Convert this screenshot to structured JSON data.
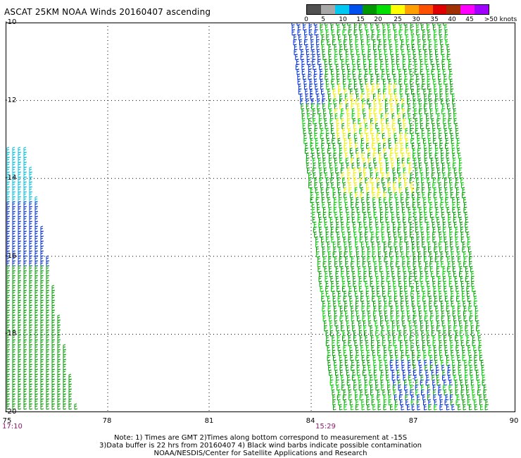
{
  "title": "ASCAT 25KM NOAA Winds 20160407 ascending",
  "legend": {
    "colors": [
      "#505050",
      "#a8a8a8",
      "#00c8f0",
      "#0050f0",
      "#009800",
      "#00e000",
      "#ffff00",
      "#ffa000",
      "#ff5000",
      "#e00000",
      "#a03000",
      "#ff00ff",
      "#a000ff"
    ],
    "labels": [
      "0",
      "5",
      "10",
      "15",
      "20",
      "25",
      "30",
      "35",
      "40",
      "45",
      ">50 knots"
    ]
  },
  "axes": {
    "x_ticks": [
      "75",
      "78",
      "81",
      "84",
      "87",
      "90"
    ],
    "y_ticks": [
      "-10",
      "-12",
      "-14",
      "-16",
      "-18",
      "-20"
    ]
  },
  "times": {
    "left": "17:10",
    "middle": "15:29"
  },
  "notes": [
    "Note: 1) Times are GMT 2)Times along bottom correspond to measurement at -15S",
    "3)Data buffer is 22 hrs from 20160407 4) Black wind barbs indicate possible contamination",
    "NOAA/NESDIS/Center for Satellite Applications and Research"
  ]
}
